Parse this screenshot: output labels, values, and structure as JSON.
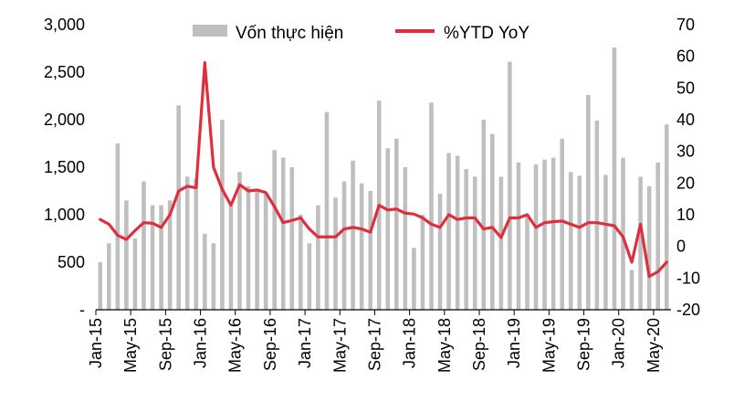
{
  "chart_data": {
    "type": "bar+line",
    "colors": {
      "bars": "#bfbfbf",
      "line": "#e02e3d",
      "axis": "#000000"
    },
    "legend": {
      "placement": "top",
      "items": [
        {
          "label": "Vốn thực hiện",
          "kind": "bar"
        },
        {
          "label": "%YTD YoY",
          "kind": "line"
        }
      ]
    },
    "x": [
      "Jan-15",
      "Feb-15",
      "Mar-15",
      "Apr-15",
      "May-15",
      "Jun-15",
      "Jul-15",
      "Aug-15",
      "Sep-15",
      "Oct-15",
      "Nov-15",
      "Dec-15",
      "Jan-16",
      "Feb-16",
      "Mar-16",
      "Apr-16",
      "May-16",
      "Jun-16",
      "Jul-16",
      "Aug-16",
      "Sep-16",
      "Oct-16",
      "Nov-16",
      "Dec-16",
      "Jan-17",
      "Feb-17",
      "Mar-17",
      "Apr-17",
      "May-17",
      "Jun-17",
      "Jul-17",
      "Aug-17",
      "Sep-17",
      "Oct-17",
      "Nov-17",
      "Dec-17",
      "Jan-18",
      "Feb-18",
      "Mar-18",
      "Apr-18",
      "May-18",
      "Jun-18",
      "Jul-18",
      "Aug-18",
      "Sep-18",
      "Oct-18",
      "Nov-18",
      "Dec-18",
      "Jan-19",
      "Feb-19",
      "Mar-19",
      "Apr-19",
      "May-19",
      "Jun-19",
      "Jul-19",
      "Aug-19",
      "Sep-19",
      "Oct-19",
      "Nov-19",
      "Dec-19",
      "Jan-20",
      "Feb-20",
      "Mar-20",
      "Apr-20",
      "May-20",
      "Jun-20"
    ],
    "x_tick_labels": [
      "Jan-15",
      "May-15",
      "Sep-15",
      "Jan-16",
      "May-16",
      "Sep-16",
      "Jan-17",
      "May-17",
      "Sep-17",
      "Jan-18",
      "May-18",
      "Sep-18",
      "Jan-19",
      "May-19",
      "Sep-19",
      "Jan-20",
      "May-20"
    ],
    "y_left": {
      "ticks": [
        0,
        500,
        1000,
        1500,
        2000,
        2500,
        3000
      ],
      "tick_labels": [
        "-",
        "500",
        "1,000",
        "1,500",
        "2,000",
        "2,500",
        "3,000"
      ],
      "range": [
        0,
        3000
      ]
    },
    "y_right": {
      "ticks": [
        -20,
        -10,
        0,
        10,
        20,
        30,
        40,
        50,
        60,
        70
      ],
      "tick_labels": [
        "-20",
        "-10",
        "0",
        "10",
        "20",
        "30",
        "40",
        "50",
        "60",
        "70"
      ],
      "range": [
        -20,
        70
      ]
    },
    "series": [
      {
        "name": "Vốn thực hiện",
        "type": "bar",
        "axis": "left",
        "values": [
          500,
          700,
          1750,
          1150,
          750,
          1350,
          1100,
          1100,
          1150,
          2150,
          1400,
          1380,
          800,
          700,
          2000,
          1100,
          1450,
          1300,
          1250,
          1220,
          1680,
          1600,
          1500,
          1000,
          700,
          1100,
          2080,
          1180,
          1350,
          1570,
          1330,
          1250,
          2200,
          1700,
          1800,
          1500,
          650,
          1000,
          2180,
          1220,
          1650,
          1620,
          1480,
          1400,
          2000,
          1850,
          1400,
          2610,
          1550,
          1000,
          1530,
          1580,
          1600,
          1800,
          1450,
          1410,
          2260,
          1990,
          1420,
          2760,
          1600,
          420,
          1400,
          1300,
          1550,
          1950
        ]
      },
      {
        "name": "%YTD YoY",
        "type": "line",
        "axis": "right",
        "values": [
          8.5,
          7,
          3.5,
          2.2,
          5,
          7.5,
          7.3,
          6,
          10,
          17.5,
          19,
          18.5,
          58,
          25,
          18,
          13,
          19.5,
          17.5,
          17.8,
          17,
          12.5,
          7.5,
          8.2,
          9,
          5.5,
          3,
          3,
          3,
          5.5,
          6,
          5.5,
          4.5,
          13,
          11.5,
          11.8,
          10.5,
          10.2,
          9,
          7,
          6,
          10,
          8.5,
          9,
          9,
          5.5,
          6,
          2.8,
          9,
          9,
          10,
          6,
          7.5,
          7.8,
          8,
          7,
          6,
          7.5,
          7.5,
          7,
          6.5,
          3,
          -5,
          7,
          -9.5,
          -8,
          -5
        ]
      }
    ]
  }
}
